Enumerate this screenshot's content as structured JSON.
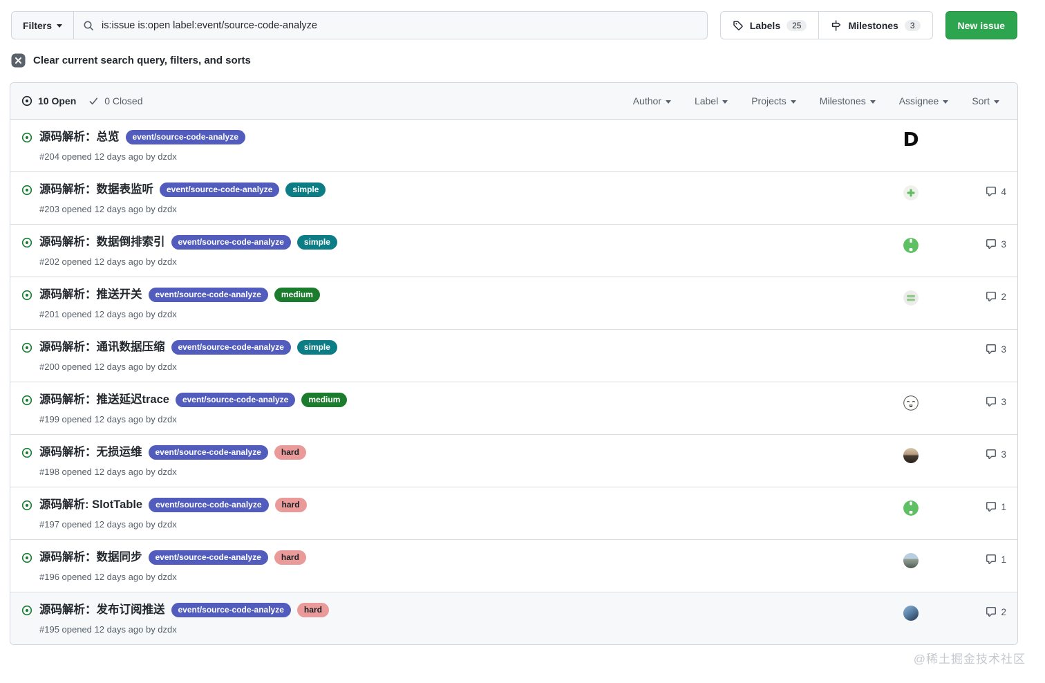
{
  "topbar": {
    "filters_label": "Filters",
    "search_query": "is:issue is:open label:event/source-code-analyze",
    "labels_button": {
      "label": "Labels",
      "count": "25"
    },
    "milestones_button": {
      "label": "Milestones",
      "count": "3"
    },
    "new_issue_label": "New issue",
    "new_issue_color": "#2da44e"
  },
  "clear_row": {
    "label": "Clear current search query, filters, and sorts"
  },
  "list_header": {
    "open_label": "10 Open",
    "closed_label": "0 Closed",
    "filters": [
      {
        "label": "Author"
      },
      {
        "label": "Label"
      },
      {
        "label": "Projects"
      },
      {
        "label": "Milestones"
      },
      {
        "label": "Assignee"
      },
      {
        "label": "Sort"
      }
    ]
  },
  "label_defs": {
    "event/source-code-analyze": {
      "bg": "#525cbd",
      "fg": "#ffffff"
    },
    "simple": {
      "bg": "#0c7d85",
      "fg": "#ffffff"
    },
    "medium": {
      "bg": "#1c7c2e",
      "fg": "#ffffff"
    },
    "hard": {
      "bg": "#ea9a99",
      "fg": "#1b1f24"
    }
  },
  "status_colors": {
    "open_icon": "#1a7f37"
  },
  "issues": [
    {
      "title": "源码解析：总览",
      "labels": [
        "event/source-code-analyze"
      ],
      "meta": "#204 opened 12 days ago by dzdx",
      "avatar": "letter-d",
      "comments": null
    },
    {
      "title": "源码解析：数据表监听",
      "labels": [
        "event/source-code-analyze",
        "simple"
      ],
      "meta": "#203 opened 12 days ago by dzdx",
      "avatar": "plus-badge",
      "comments": 4
    },
    {
      "title": "源码解析：数据倒排索引",
      "labels": [
        "event/source-code-analyze",
        "simple"
      ],
      "meta": "#202 opened 12 days ago by dzdx",
      "avatar": "green-bot",
      "comments": 3
    },
    {
      "title": "源码解析：推送开关",
      "labels": [
        "event/source-code-analyze",
        "medium"
      ],
      "meta": "#201 opened 12 days ago by dzdx",
      "avatar": "grey-bars",
      "comments": 2
    },
    {
      "title": "源码解析：通讯数据压缩",
      "labels": [
        "event/source-code-analyze",
        "simple"
      ],
      "meta": "#200 opened 12 days ago by dzdx",
      "avatar": null,
      "comments": 3
    },
    {
      "title": "源码解析：推送延迟trace",
      "labels": [
        "event/source-code-analyze",
        "medium"
      ],
      "meta": "#199 opened 12 days ago by dzdx",
      "avatar": "doodle-face",
      "comments": 3
    },
    {
      "title": "源码解析：无损运维",
      "labels": [
        "event/source-code-analyze",
        "hard"
      ],
      "meta": "#198 opened 12 days ago by dzdx",
      "avatar": "photo-dusk",
      "comments": 3
    },
    {
      "title": "源码解析: SlotTable",
      "labels": [
        "event/source-code-analyze",
        "hard"
      ],
      "meta": "#197 opened 12 days ago by dzdx",
      "avatar": "green-bot",
      "comments": 1
    },
    {
      "title": "源码解析：数据同步",
      "labels": [
        "event/source-code-analyze",
        "hard"
      ],
      "meta": "#196 opened 12 days ago by dzdx",
      "avatar": "photo-field",
      "comments": 1
    },
    {
      "title": "源码解析：发布订阅推送",
      "labels": [
        "event/source-code-analyze",
        "hard"
      ],
      "meta": "#195 opened 12 days ago by dzdx",
      "avatar": "photo-person",
      "comments": 2,
      "highlighted": true
    }
  ],
  "watermark": "@稀土掘金技术社区"
}
